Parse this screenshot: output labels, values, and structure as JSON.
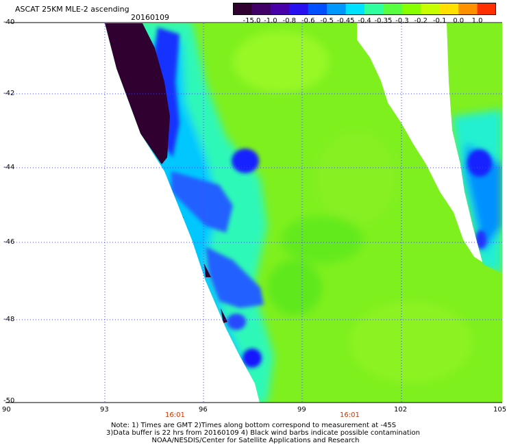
{
  "header": {
    "title": "ASCAT 25KM MLE-2 ascending",
    "date": "20160109"
  },
  "colorbar": {
    "labels": [
      "-15.0",
      "-1.0",
      "-0.8",
      "-0.6",
      "-0.5",
      "-0.45",
      "-0.4",
      "-0.35",
      "-0.3",
      "-0.2",
      "-0.1",
      "0.0",
      "1.0"
    ],
    "colors": [
      "#300030",
      "#400068",
      "#4800a8",
      "#2810f0",
      "#0050ff",
      "#0098ff",
      "#00e0ff",
      "#30ffa0",
      "#58ff40",
      "#88ff00",
      "#c8ff00",
      "#ffe000",
      "#ff9000",
      "#ff3000"
    ]
  },
  "axes": {
    "y_ticks": [
      "-40",
      "-42",
      "-44",
      "-46",
      "-48",
      "-50"
    ],
    "x_ticks": [
      "90",
      "93",
      "96",
      "99",
      "102",
      "105"
    ],
    "time_labels": [
      "16:01",
      "16:01"
    ]
  },
  "map": {
    "lon_range": [
      90,
      105
    ],
    "lat_range": [
      -40,
      -50
    ],
    "field_color_green": "#7cf020",
    "field_color_cyan": "#30ffb0",
    "field_color_blue": "#2040ff",
    "field_color_dark": "#300030",
    "grid_color": "#4040ff"
  },
  "notes": {
    "line1": "Note: 1) Times are GMT 2)Times along bottom correspond to measurement at -45S",
    "line2": "3)Data buffer is 22 hrs from 20160109 4) Black wind barbs indicate possible contamination",
    "line3": "NOAA/NESDIS/Center for Satellite Applications and Research"
  }
}
